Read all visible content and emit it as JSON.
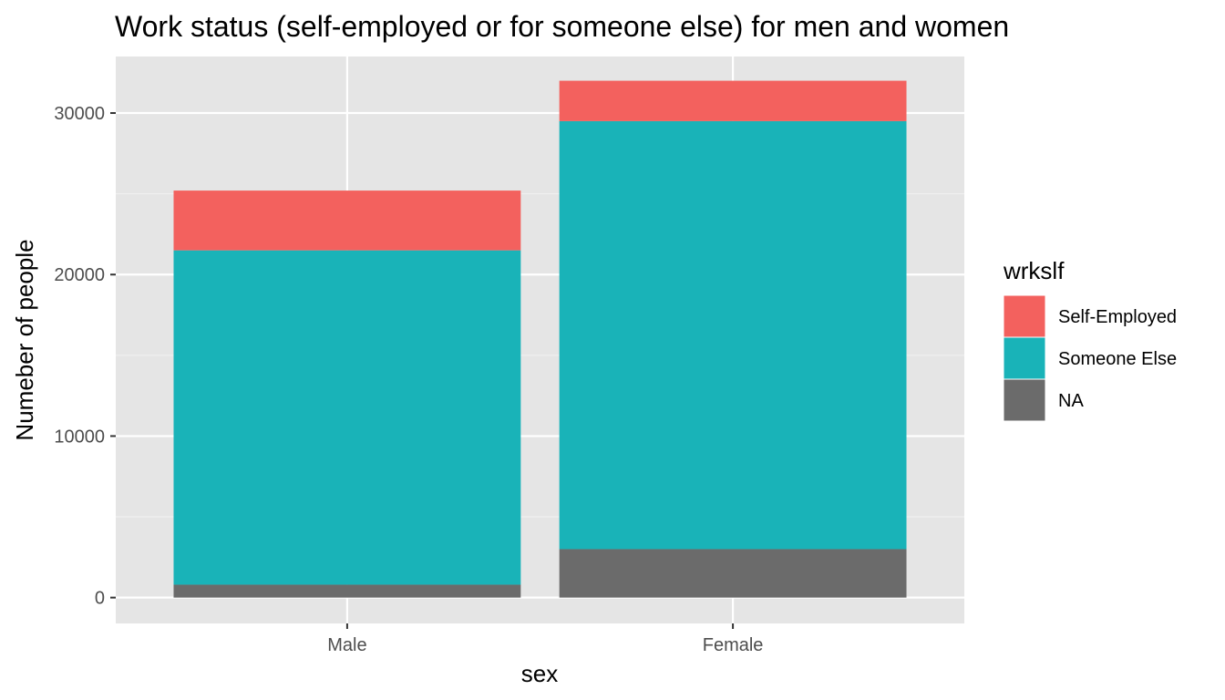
{
  "chart_data": {
    "type": "bar",
    "stacked": true,
    "title": "Work status (self-employed or for someone else) for men and women",
    "xlabel": "sex",
    "ylabel": "Numeber of people",
    "categories": [
      "Male",
      "Female"
    ],
    "series": [
      {
        "name": "NA",
        "values": [
          800,
          3000
        ],
        "color": "#6b6b6b"
      },
      {
        "name": "Someone Else",
        "values": [
          20700,
          26500
        ],
        "color": "#19b3b8"
      },
      {
        "name": "Self-Employed",
        "values": [
          3700,
          2500
        ],
        "color": "#f3615e"
      }
    ],
    "ylim": [
      -1600,
      33500
    ],
    "yticks": [
      0,
      10000,
      20000,
      30000
    ],
    "legend": {
      "title": "wrkslf",
      "position": "right",
      "order": [
        "Self-Employed",
        "Someone Else",
        "NA"
      ]
    },
    "grid": true,
    "panel_background": "#e5e5e5"
  }
}
